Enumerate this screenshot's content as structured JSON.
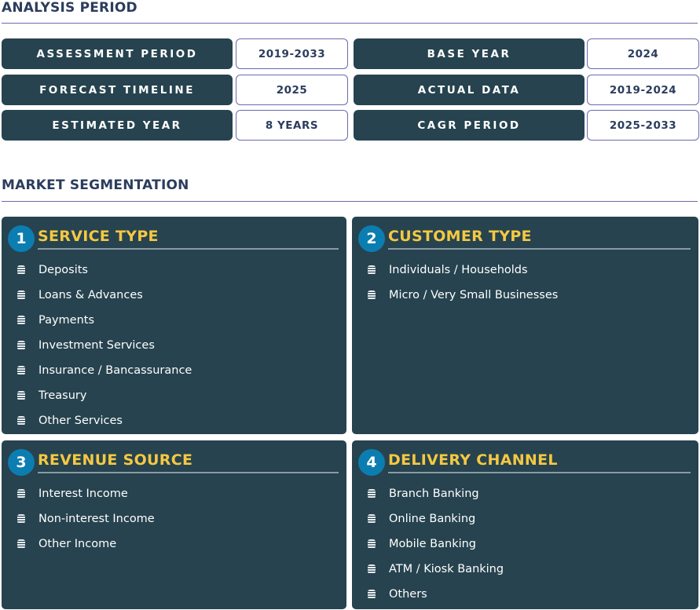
{
  "analysis": {
    "heading": "ANALYSIS PERIOD",
    "rows": [
      {
        "label": "ASSESSMENT PERIOD",
        "value": "2019-2033",
        "label2": "BASE YEAR",
        "value2": "2024"
      },
      {
        "label": "FORECAST TIMELINE",
        "value": "2025",
        "label2": "ACTUAL DATA",
        "value2": "2019-2024"
      },
      {
        "label": "ESTIMATED YEAR",
        "value": "8 YEARS",
        "label2": "CAGR PERIOD",
        "value2": "2025-2033"
      }
    ]
  },
  "segmentation": {
    "heading": "MARKET SEGMENTATION",
    "cards": [
      {
        "num": "1",
        "title": "SERVICE TYPE",
        "items": [
          "Deposits",
          "Loans & Advances",
          "Payments",
          "Investment Services",
          "Insurance / Bancassurance",
          "Treasury",
          "Other Services"
        ]
      },
      {
        "num": "2",
        "title": "CUSTOMER TYPE",
        "items": [
          "Individuals / Households",
          "Micro / Very Small Businesses"
        ]
      },
      {
        "num": "3",
        "title": "REVENUE SOURCE",
        "items": [
          "Interest Income",
          "Non-interest Income",
          "Other Income"
        ]
      },
      {
        "num": "4",
        "title": "DELIVERY CHANNEL",
        "items": [
          "Branch Banking",
          "Online Banking",
          "Mobile Banking",
          "ATM / Kiosk Banking",
          "Others"
        ]
      }
    ]
  },
  "colors": {
    "card": "#26434f",
    "accent": "#f5c842",
    "badge": "#0c7db0",
    "heading": "#2b3d5e"
  }
}
